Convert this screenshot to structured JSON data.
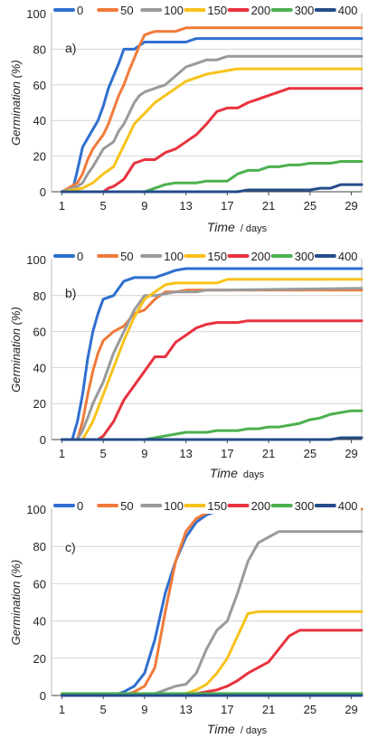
{
  "colors": {
    "0": "#2f6fd0",
    "50": "#f07a3a",
    "100": "#9a9a9a",
    "150": "#f7c21b",
    "200": "#e8323e",
    "300": "#4cb04f",
    "400": "#254c8a"
  },
  "chart_data": [
    {
      "type": "line",
      "panel_label": "a)",
      "ylabel": "Germination (%)",
      "xlabel_main": "Time",
      "xlabel_unit": "/ days",
      "xlim": [
        0,
        30
      ],
      "ylim": [
        0,
        100
      ],
      "xticks": [
        1,
        5,
        9,
        13,
        17,
        21,
        25,
        29
      ],
      "yticks": [
        0,
        20,
        40,
        60,
        80,
        100
      ],
      "grid": true,
      "legend_position": "top",
      "series": [
        {
          "name": "0",
          "x": [
            1,
            2,
            2.5,
            3,
            3.5,
            4,
            4.5,
            5,
            5.5,
            6,
            6.5,
            7,
            7.5,
            8,
            9,
            10,
            11,
            12,
            13,
            14,
            30
          ],
          "y": [
            0,
            0,
            12,
            25,
            30,
            35,
            40,
            48,
            58,
            65,
            72,
            80,
            80,
            80,
            84,
            84,
            84,
            84,
            84,
            86,
            86
          ]
        },
        {
          "name": "50",
          "x": [
            1,
            2.5,
            3,
            3.5,
            4,
            4.5,
            5,
            5.5,
            6,
            6.5,
            7,
            7.5,
            8,
            8.5,
            9,
            10,
            11,
            12,
            13,
            30
          ],
          "y": [
            0,
            5,
            10,
            18,
            24,
            28,
            32,
            38,
            46,
            54,
            60,
            68,
            75,
            82,
            88,
            90,
            90,
            90,
            92,
            92
          ]
        },
        {
          "name": "100",
          "x": [
            1,
            2.5,
            3,
            3.5,
            4,
            5,
            6,
            6.5,
            7,
            7.5,
            8,
            8.5,
            9,
            10,
            11,
            12,
            13,
            14,
            15,
            16,
            17,
            18,
            19,
            30
          ],
          "y": [
            0,
            3,
            5,
            10,
            14,
            24,
            28,
            34,
            38,
            44,
            50,
            54,
            56,
            58,
            60,
            65,
            70,
            72,
            74,
            74,
            76,
            76,
            76,
            76
          ]
        },
        {
          "name": "150",
          "x": [
            1,
            3,
            4,
            5,
            6,
            7,
            7.5,
            8,
            9,
            10,
            11,
            12,
            13,
            14,
            15,
            16,
            17,
            18,
            30
          ],
          "y": [
            0,
            2,
            5,
            10,
            14,
            26,
            32,
            38,
            44,
            50,
            54,
            58,
            62,
            64,
            66,
            67,
            68,
            69,
            69
          ]
        },
        {
          "name": "200",
          "x": [
            1,
            5,
            5.5,
            6,
            6.5,
            7,
            8,
            9,
            10,
            11,
            12,
            13,
            14,
            15,
            16,
            17,
            18,
            19,
            20,
            21,
            22,
            23,
            24,
            25,
            26,
            30
          ],
          "y": [
            0,
            0,
            2,
            3,
            5,
            7,
            16,
            18,
            18,
            22,
            24,
            28,
            32,
            38,
            45,
            47,
            47,
            50,
            52,
            54,
            56,
            58,
            58,
            58,
            58,
            58
          ]
        },
        {
          "name": "300",
          "x": [
            1,
            9,
            10,
            11,
            12,
            13,
            14,
            15,
            16,
            17,
            18,
            19,
            20,
            21,
            22,
            23,
            24,
            25,
            26,
            27,
            28,
            29,
            30
          ],
          "y": [
            0,
            0,
            2,
            4,
            5,
            5,
            5,
            6,
            6,
            6,
            10,
            12,
            12,
            14,
            14,
            15,
            15,
            16,
            16,
            16,
            17,
            17,
            17
          ]
        },
        {
          "name": "400",
          "x": [
            1,
            16,
            17,
            18,
            19,
            20,
            21,
            22,
            23,
            24,
            25,
            26,
            27,
            28,
            29,
            30
          ],
          "y": [
            0,
            0,
            0,
            0,
            1,
            1,
            1,
            1,
            1,
            1,
            1,
            2,
            2,
            4,
            4,
            4
          ]
        }
      ]
    },
    {
      "type": "line",
      "panel_label": "b)",
      "ylabel": "Germination (%)",
      "xlabel_main": "Time",
      "xlabel_unit": "days",
      "xlim": [
        0,
        30
      ],
      "ylim": [
        0,
        100
      ],
      "xticks": [
        1,
        5,
        9,
        13,
        17,
        21,
        25,
        29
      ],
      "yticks": [
        0,
        20,
        40,
        60,
        80,
        100
      ],
      "grid": true,
      "legend_position": "top",
      "series": [
        {
          "name": "0",
          "x": [
            1,
            2,
            2.5,
            3,
            3.5,
            4,
            4.5,
            5,
            6,
            7,
            8,
            9,
            10,
            11,
            12,
            13,
            30
          ],
          "y": [
            0,
            0,
            10,
            25,
            45,
            60,
            70,
            78,
            80,
            88,
            90,
            90,
            90,
            92,
            94,
            95,
            95
          ]
        },
        {
          "name": "50",
          "x": [
            1,
            2.5,
            3,
            3.5,
            4,
            4.5,
            5,
            6,
            7,
            8,
            9,
            10,
            11,
            12,
            13,
            30
          ],
          "y": [
            0,
            0,
            10,
            25,
            38,
            48,
            55,
            60,
            63,
            70,
            72,
            78,
            82,
            82,
            83,
            83
          ]
        },
        {
          "name": "100",
          "x": [
            1,
            2.5,
            3,
            3.5,
            4,
            5,
            6,
            7,
            8,
            9,
            10,
            11,
            12,
            13,
            14,
            15,
            16,
            30
          ],
          "y": [
            0,
            0,
            5,
            12,
            20,
            32,
            48,
            60,
            72,
            80,
            80,
            81,
            82,
            82,
            82,
            83,
            83,
            84
          ]
        },
        {
          "name": "150",
          "x": [
            1,
            3,
            4,
            5,
            6,
            7,
            8,
            9,
            10,
            11,
            12,
            13,
            14,
            15,
            16,
            17,
            18,
            30
          ],
          "y": [
            0,
            0,
            10,
            25,
            40,
            55,
            68,
            78,
            82,
            86,
            87,
            87,
            87,
            87,
            87,
            89,
            89,
            89
          ]
        },
        {
          "name": "200",
          "x": [
            1,
            4.5,
            5,
            6,
            7,
            8,
            9,
            10,
            11,
            12,
            13,
            14,
            15,
            16,
            17,
            18,
            19,
            20,
            21,
            30
          ],
          "y": [
            0,
            0,
            2,
            10,
            22,
            30,
            38,
            46,
            46,
            54,
            58,
            62,
            64,
            65,
            65,
            65,
            66,
            66,
            66,
            66
          ]
        },
        {
          "name": "300",
          "x": [
            1,
            9,
            10,
            11,
            12,
            13,
            14,
            15,
            16,
            17,
            18,
            19,
            20,
            21,
            22,
            23,
            24,
            25,
            26,
            27,
            28,
            29,
            30
          ],
          "y": [
            0,
            0,
            1,
            2,
            3,
            4,
            4,
            4,
            5,
            5,
            5,
            6,
            6,
            7,
            7,
            8,
            9,
            11,
            12,
            14,
            15,
            16,
            16
          ]
        },
        {
          "name": "400",
          "x": [
            1,
            27,
            28,
            29,
            30
          ],
          "y": [
            0,
            0,
            1,
            1,
            1
          ]
        }
      ]
    },
    {
      "type": "line",
      "panel_label": "c)",
      "ylabel": "Germination (%)",
      "xlabel_main": "Time",
      "xlabel_unit": "/ days",
      "xlim": [
        0,
        30
      ],
      "ylim": [
        0,
        100
      ],
      "xticks": [
        1,
        5,
        9,
        13,
        17,
        21,
        25,
        29
      ],
      "yticks": [
        0,
        20,
        40,
        60,
        80,
        100
      ],
      "grid": true,
      "legend_position": "top",
      "series": [
        {
          "name": "0",
          "x": [
            1,
            6,
            7,
            8,
            9,
            10,
            11,
            12,
            13,
            14,
            15,
            16,
            17,
            30
          ],
          "y": [
            0,
            0,
            2,
            5,
            12,
            30,
            55,
            72,
            85,
            93,
            97,
            99,
            100,
            100
          ]
        },
        {
          "name": "50",
          "x": [
            1,
            7,
            8,
            9,
            10,
            11,
            12,
            13,
            14,
            15,
            16,
            17,
            30
          ],
          "y": [
            0,
            0,
            2,
            5,
            15,
            45,
            72,
            88,
            95,
            98,
            99,
            100,
            100
          ]
        },
        {
          "name": "100",
          "x": [
            1,
            9,
            10,
            11,
            12,
            13,
            14,
            15,
            16,
            17,
            18,
            19,
            20,
            21,
            22,
            23,
            30
          ],
          "y": [
            0,
            0,
            1,
            3,
            5,
            6,
            12,
            25,
            35,
            40,
            55,
            72,
            82,
            85,
            88,
            88,
            88
          ]
        },
        {
          "name": "150",
          "x": [
            1,
            12,
            13,
            14,
            15,
            16,
            17,
            18,
            19,
            20,
            30
          ],
          "y": [
            0,
            0,
            1,
            3,
            6,
            12,
            20,
            32,
            44,
            45,
            45
          ]
        },
        {
          "name": "200",
          "x": [
            1,
            13,
            14,
            15,
            16,
            17,
            18,
            19,
            20,
            21,
            22,
            23,
            24,
            30
          ],
          "y": [
            0,
            0,
            1,
            2,
            3,
            5,
            8,
            12,
            15,
            18,
            25,
            32,
            35,
            35
          ]
        },
        {
          "name": "300",
          "x": [
            1,
            30
          ],
          "y": [
            1,
            1
          ]
        },
        {
          "name": "400",
          "x": [
            1,
            30
          ],
          "y": [
            0,
            0
          ]
        }
      ]
    }
  ]
}
